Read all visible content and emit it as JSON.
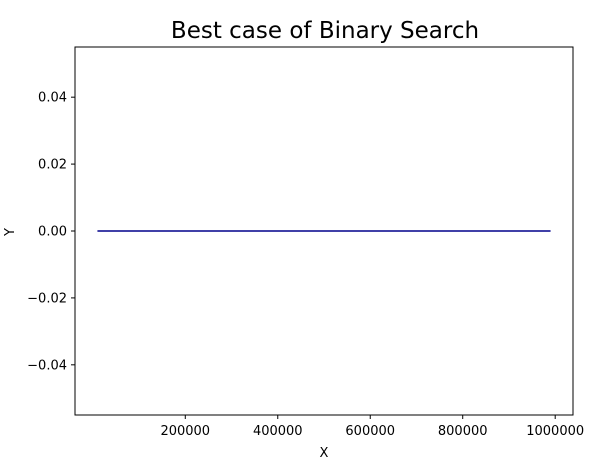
{
  "chart_data": {
    "type": "line",
    "title": "Best case of Binary Search",
    "xlabel": "X",
    "ylabel": "Y",
    "xlim": [
      -38500,
      1038500
    ],
    "ylim": [
      -0.055,
      0.055
    ],
    "x_ticks": [
      200000,
      400000,
      600000,
      800000,
      1000000
    ],
    "x_tick_labels": [
      "200000",
      "400000",
      "600000",
      "800000",
      "1000000"
    ],
    "y_ticks": [
      0.04,
      0.02,
      0.0,
      -0.02,
      -0.04
    ],
    "y_tick_labels": [
      "0.04",
      "0.02",
      "0.00",
      "−0.02",
      "−0.04"
    ],
    "grid": false,
    "series": [
      {
        "color": "#00008b",
        "x": [
          10000,
          100000,
          200000,
          300000,
          400000,
          500000,
          600000,
          700000,
          800000,
          900000,
          990000
        ],
        "y": [
          0,
          0,
          0,
          0,
          0,
          0,
          0,
          0,
          0,
          0,
          0
        ]
      }
    ]
  }
}
